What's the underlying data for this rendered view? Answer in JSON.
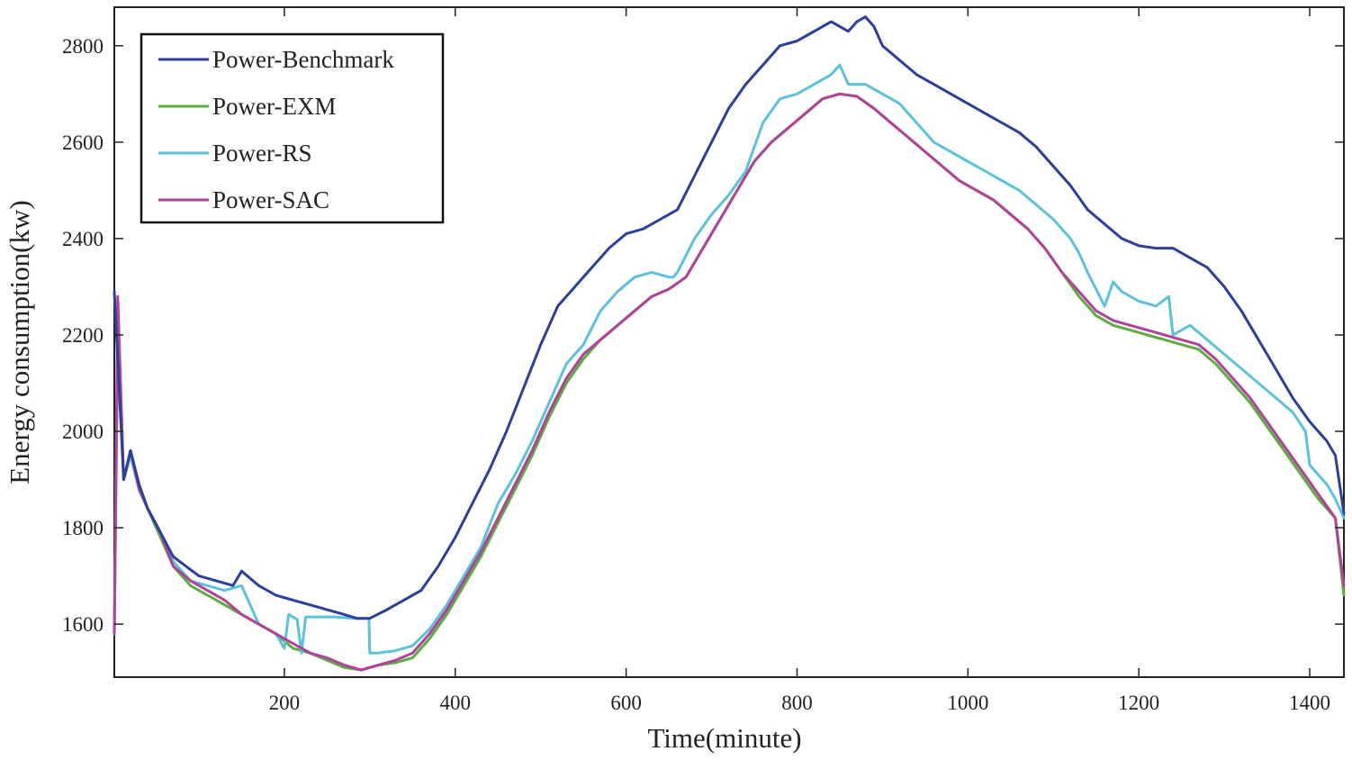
{
  "chart_data": {
    "type": "line",
    "title": "",
    "xlabel": "Time(minute)",
    "ylabel": "Energy consumption(kw)",
    "xlim": [
      1,
      1440
    ],
    "ylim": [
      1490,
      2880
    ],
    "xticks": [
      200,
      400,
      600,
      800,
      1000,
      1200,
      1400
    ],
    "yticks": [
      1600,
      1800,
      2000,
      2200,
      2400,
      2600,
      2800
    ],
    "grid": false,
    "legend_position": "top-left",
    "series": [
      {
        "name": "Power-Benchmark",
        "color": "#2b3f9c",
        "x": [
          1,
          5,
          12,
          20,
          30,
          40,
          55,
          70,
          85,
          100,
          120,
          140,
          150,
          170,
          190,
          210,
          230,
          250,
          270,
          285,
          300,
          320,
          340,
          360,
          380,
          400,
          420,
          440,
          460,
          480,
          500,
          520,
          540,
          560,
          580,
          600,
          620,
          640,
          660,
          680,
          700,
          720,
          740,
          760,
          780,
          800,
          820,
          840,
          850,
          860,
          870,
          880,
          890,
          900,
          920,
          940,
          960,
          980,
          1000,
          1020,
          1040,
          1060,
          1080,
          1100,
          1120,
          1140,
          1160,
          1180,
          1200,
          1220,
          1240,
          1260,
          1280,
          1300,
          1320,
          1340,
          1360,
          1380,
          1400,
          1420,
          1430,
          1440
        ],
        "values": [
          2290,
          2150,
          1900,
          1960,
          1890,
          1840,
          1790,
          1740,
          1720,
          1700,
          1690,
          1680,
          1710,
          1680,
          1660,
          1650,
          1640,
          1630,
          1620,
          1612,
          1612,
          1630,
          1650,
          1670,
          1720,
          1780,
          1850,
          1920,
          2000,
          2090,
          2180,
          2260,
          2300,
          2340,
          2380,
          2410,
          2420,
          2440,
          2460,
          2530,
          2600,
          2670,
          2720,
          2760,
          2800,
          2810,
          2830,
          2850,
          2840,
          2830,
          2850,
          2860,
          2840,
          2800,
          2770,
          2740,
          2720,
          2700,
          2680,
          2660,
          2640,
          2620,
          2590,
          2550,
          2510,
          2460,
          2430,
          2400,
          2385,
          2380,
          2380,
          2360,
          2340,
          2300,
          2250,
          2190,
          2130,
          2070,
          2020,
          1980,
          1950,
          1830
        ]
      },
      {
        "name": "Power-EXM",
        "color": "#5aaf3c",
        "x": [
          1,
          5,
          12,
          20,
          30,
          40,
          55,
          70,
          90,
          110,
          130,
          150,
          170,
          190,
          210,
          230,
          250,
          270,
          290,
          310,
          330,
          350,
          370,
          390,
          410,
          430,
          450,
          470,
          490,
          510,
          530,
          550,
          570,
          590,
          610,
          630,
          650,
          670,
          690,
          710,
          730,
          750,
          770,
          790,
          810,
          830,
          850,
          870,
          890,
          910,
          930,
          950,
          970,
          990,
          1010,
          1030,
          1050,
          1070,
          1090,
          1110,
          1130,
          1150,
          1170,
          1190,
          1210,
          1230,
          1250,
          1270,
          1290,
          1310,
          1330,
          1350,
          1370,
          1390,
          1410,
          1430,
          1440
        ],
        "values": [
          1580,
          2200,
          1900,
          1950,
          1880,
          1840,
          1780,
          1720,
          1680,
          1660,
          1640,
          1620,
          1600,
          1580,
          1550,
          1540,
          1525,
          1510,
          1505,
          1515,
          1520,
          1530,
          1570,
          1620,
          1680,
          1740,
          1810,
          1880,
          1950,
          2030,
          2100,
          2150,
          2190,
          2220,
          2250,
          2280,
          2295,
          2320,
          2380,
          2440,
          2500,
          2560,
          2600,
          2630,
          2660,
          2690,
          2700,
          2695,
          2670,
          2640,
          2610,
          2580,
          2550,
          2520,
          2500,
          2480,
          2450,
          2420,
          2380,
          2330,
          2280,
          2240,
          2220,
          2210,
          2200,
          2190,
          2180,
          2170,
          2140,
          2100,
          2060,
          2010,
          1960,
          1910,
          1860,
          1820,
          1660
        ]
      },
      {
        "name": "Power-RS",
        "color": "#5ac2dc",
        "x": [
          1,
          5,
          12,
          20,
          30,
          40,
          55,
          70,
          90,
          110,
          130,
          150,
          160,
          170,
          190,
          200,
          205,
          215,
          220,
          225,
          240,
          260,
          280,
          299,
          300,
          310,
          330,
          350,
          370,
          390,
          410,
          430,
          450,
          470,
          490,
          510,
          530,
          550,
          570,
          590,
          610,
          630,
          650,
          655,
          660,
          680,
          700,
          720,
          740,
          760,
          780,
          800,
          820,
          840,
          850,
          860,
          880,
          900,
          920,
          940,
          960,
          980,
          1000,
          1020,
          1040,
          1060,
          1080,
          1100,
          1120,
          1130,
          1140,
          1160,
          1170,
          1180,
          1200,
          1220,
          1235,
          1240,
          1260,
          1280,
          1300,
          1320,
          1340,
          1360,
          1380,
          1395,
          1400,
          1410,
          1420,
          1430,
          1440
        ],
        "values": [
          1580,
          2210,
          1900,
          1950,
          1880,
          1840,
          1790,
          1730,
          1690,
          1680,
          1670,
          1680,
          1640,
          1600,
          1580,
          1550,
          1620,
          1610,
          1540,
          1615,
          1615,
          1615,
          1612,
          1612,
          1540,
          1540,
          1545,
          1555,
          1590,
          1640,
          1700,
          1760,
          1850,
          1910,
          1980,
          2060,
          2140,
          2180,
          2250,
          2290,
          2320,
          2330,
          2320,
          2320,
          2330,
          2400,
          2450,
          2490,
          2540,
          2640,
          2690,
          2700,
          2720,
          2740,
          2760,
          2720,
          2720,
          2700,
          2680,
          2640,
          2600,
          2580,
          2560,
          2540,
          2520,
          2500,
          2470,
          2440,
          2400,
          2370,
          2330,
          2260,
          2310,
          2290,
          2270,
          2260,
          2280,
          2200,
          2220,
          2190,
          2160,
          2130,
          2100,
          2070,
          2040,
          2000,
          1930,
          1910,
          1890,
          1860,
          1820
        ]
      },
      {
        "name": "Power-SAC",
        "color": "#b1419b",
        "x": [
          1,
          5,
          12,
          20,
          30,
          40,
          55,
          70,
          90,
          110,
          130,
          150,
          170,
          190,
          210,
          230,
          250,
          270,
          290,
          310,
          330,
          350,
          370,
          390,
          410,
          430,
          450,
          470,
          490,
          510,
          530,
          550,
          570,
          590,
          610,
          630,
          650,
          670,
          690,
          710,
          730,
          750,
          770,
          790,
          810,
          830,
          850,
          870,
          890,
          910,
          930,
          950,
          970,
          990,
          1010,
          1030,
          1050,
          1070,
          1090,
          1110,
          1130,
          1150,
          1170,
          1190,
          1210,
          1230,
          1250,
          1270,
          1290,
          1310,
          1330,
          1350,
          1370,
          1390,
          1410,
          1430,
          1440
        ],
        "values": [
          1580,
          2280,
          1900,
          1960,
          1880,
          1840,
          1790,
          1720,
          1690,
          1670,
          1650,
          1620,
          1600,
          1580,
          1560,
          1540,
          1530,
          1515,
          1505,
          1515,
          1525,
          1540,
          1580,
          1630,
          1690,
          1750,
          1820,
          1890,
          1960,
          2040,
          2110,
          2160,
          2190,
          2220,
          2250,
          2280,
          2295,
          2320,
          2380,
          2440,
          2500,
          2560,
          2600,
          2630,
          2660,
          2690,
          2700,
          2695,
          2670,
          2640,
          2610,
          2580,
          2550,
          2520,
          2500,
          2480,
          2450,
          2420,
          2380,
          2330,
          2290,
          2250,
          2230,
          2220,
          2210,
          2200,
          2190,
          2180,
          2150,
          2110,
          2070,
          2020,
          1970,
          1920,
          1870,
          1820,
          1680
        ]
      }
    ]
  }
}
